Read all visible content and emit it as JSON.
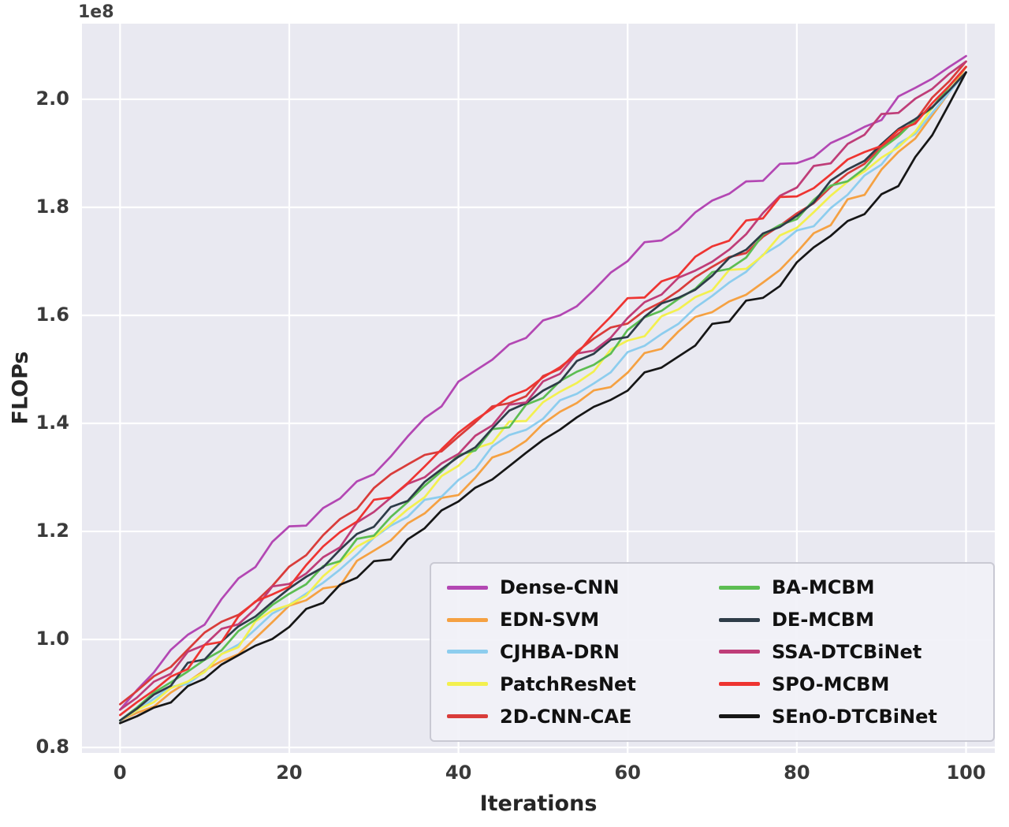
{
  "figure": {
    "offset_text": "1e8",
    "xlabel": "Iterations",
    "ylabel": "FLOPs"
  },
  "colors": {
    "plot_background": "#e9e9f1",
    "grid": "#ffffff",
    "tick_label": "#3a3a3a",
    "axis_label": "#262626",
    "legend_background": "#f1f1f7",
    "legend_border": "#c9c9d3"
  },
  "chart_data": {
    "type": "line",
    "title": "",
    "xlabel": "Iterations",
    "ylabel": "FLOPs",
    "y_unit_multiplier": "1e8",
    "x_ticks": [
      0,
      20,
      40,
      60,
      80,
      100
    ],
    "y_ticks": [
      0.8,
      1.0,
      1.2,
      1.4,
      1.6,
      1.8,
      2.0
    ],
    "xlim": [
      -4.5,
      103.4
    ],
    "ylim": [
      0.79,
      2.14
    ],
    "grid": true,
    "legend": {
      "position": "lower right",
      "columns": 2,
      "fill_order": "column-major"
    },
    "x": [
      0,
      5,
      10,
      15,
      20,
      25,
      30,
      35,
      40,
      45,
      50,
      55,
      60,
      65,
      70,
      75,
      80,
      85,
      90,
      95,
      100
    ],
    "series": [
      {
        "name": "Dense-CNN",
        "color": "#b347b3",
        "values": [
          0.87,
          0.96,
          1.04,
          1.12,
          1.2,
          1.24,
          1.31,
          1.39,
          1.47,
          1.53,
          1.58,
          1.64,
          1.7,
          1.76,
          1.81,
          1.85,
          1.88,
          1.92,
          1.97,
          2.03,
          2.08
        ]
      },
      {
        "name": "EDN-SVM",
        "color": "#f5a142",
        "values": [
          0.85,
          0.89,
          0.94,
          0.99,
          1.05,
          1.1,
          1.16,
          1.22,
          1.28,
          1.34,
          1.39,
          1.45,
          1.5,
          1.55,
          1.61,
          1.66,
          1.72,
          1.79,
          1.86,
          1.94,
          2.06
        ]
      },
      {
        "name": "CJHBA-DRN",
        "color": "#8dcdee",
        "values": [
          0.85,
          0.9,
          0.95,
          1.0,
          1.06,
          1.12,
          1.18,
          1.24,
          1.3,
          1.36,
          1.42,
          1.47,
          1.53,
          1.58,
          1.63,
          1.69,
          1.75,
          1.81,
          1.88,
          1.95,
          2.05
        ]
      },
      {
        "name": "PatchResNet",
        "color": "#f3f04f",
        "values": [
          0.85,
          0.9,
          0.95,
          1.01,
          1.07,
          1.13,
          1.19,
          1.26,
          1.32,
          1.38,
          1.44,
          1.49,
          1.55,
          1.6,
          1.65,
          1.71,
          1.77,
          1.83,
          1.89,
          1.96,
          2.06
        ]
      },
      {
        "name": "2D-CNN-CAE",
        "color": "#d93c3a",
        "values": [
          0.88,
          0.94,
          1.0,
          1.06,
          1.14,
          1.21,
          1.27,
          1.33,
          1.38,
          1.43,
          1.48,
          1.54,
          1.59,
          1.63,
          1.68,
          1.73,
          1.79,
          1.85,
          1.91,
          1.98,
          2.07
        ]
      },
      {
        "name": "BA-MCBM",
        "color": "#5cbd52",
        "values": [
          0.85,
          0.91,
          0.96,
          1.02,
          1.08,
          1.14,
          1.2,
          1.27,
          1.33,
          1.39,
          1.45,
          1.51,
          1.56,
          1.62,
          1.67,
          1.73,
          1.78,
          1.84,
          1.9,
          1.97,
          2.06
        ]
      },
      {
        "name": "DE-MCBM",
        "color": "#2e3c48",
        "values": [
          0.85,
          0.91,
          0.97,
          1.03,
          1.09,
          1.15,
          1.21,
          1.28,
          1.34,
          1.4,
          1.46,
          1.52,
          1.57,
          1.63,
          1.68,
          1.74,
          1.79,
          1.85,
          1.91,
          1.97,
          2.05
        ]
      },
      {
        "name": "SSA-DTCBiNet",
        "color": "#bf3d78",
        "values": [
          0.87,
          0.93,
          0.99,
          1.05,
          1.11,
          1.17,
          1.23,
          1.29,
          1.35,
          1.41,
          1.47,
          1.53,
          1.59,
          1.65,
          1.71,
          1.77,
          1.84,
          1.9,
          1.96,
          2.01,
          2.07
        ]
      },
      {
        "name": "SPO-MCBM",
        "color": "#ee3431",
        "values": [
          0.86,
          0.92,
          0.98,
          1.05,
          1.11,
          1.18,
          1.25,
          1.31,
          1.38,
          1.44,
          1.49,
          1.55,
          1.62,
          1.67,
          1.72,
          1.78,
          1.83,
          1.87,
          1.91,
          1.97,
          2.06
        ]
      },
      {
        "name": "SEnO-DTCBiNet",
        "color": "#161616",
        "values": [
          0.845,
          0.88,
          0.93,
          0.98,
          1.03,
          1.08,
          1.14,
          1.19,
          1.25,
          1.31,
          1.36,
          1.42,
          1.47,
          1.52,
          1.58,
          1.63,
          1.69,
          1.75,
          1.82,
          1.9,
          2.05
        ]
      }
    ]
  }
}
